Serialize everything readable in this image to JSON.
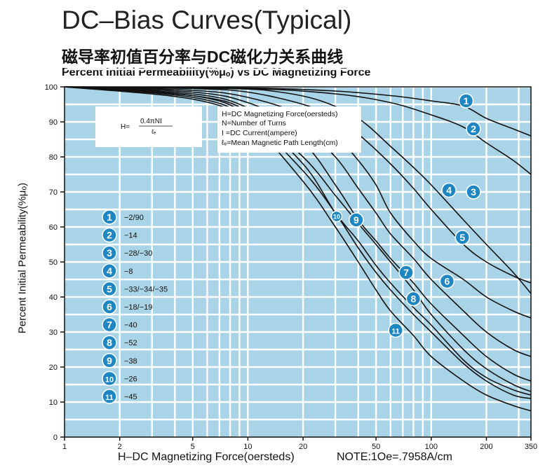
{
  "header": {
    "title": "DC–Bias Curves(Typical)",
    "subtitle_cn": "磁导率初值百分率与DC磁化力关系曲线",
    "subtitle_en": "Percent Initial Permeability(%μₒ) vs DC Magnetizing Force"
  },
  "formula": {
    "lhs": "H=",
    "numerator": "0.4πNI",
    "denominator": "ℓₑ"
  },
  "definitions": [
    "H=DC Magnetizing Force(oersteds)",
    "N=Number of Turns",
    "I =DC Current(ampere)",
    "ℓₑ=Mean Magnetic Path Length(cm)"
  ],
  "chart_data": {
    "type": "line",
    "xscale": "log",
    "xlabel": "H–DC Magnetizing Force(oersteds)",
    "xnote": "NOTE:1Oe=.7958A/cm",
    "ylabel": "Percent Initial Permeability(%μₒ)",
    "xlim": [
      1,
      350
    ],
    "ylim": [
      0,
      100
    ],
    "xticks": [
      1,
      2,
      5,
      10,
      20,
      50,
      100,
      200,
      350
    ],
    "yticks": [
      0,
      10,
      20,
      30,
      40,
      50,
      60,
      70,
      80,
      90,
      100
    ],
    "grid": true,
    "background": "#a9d3e6",
    "legend_position": "left",
    "series": [
      {
        "label": "1",
        "desc": "−2/90",
        "label_at": [
          155,
          96
        ],
        "points": [
          [
            1,
            100
          ],
          [
            10,
            99.7
          ],
          [
            30,
            98.8
          ],
          [
            60,
            97.5
          ],
          [
            100,
            96
          ],
          [
            150,
            94.5
          ],
          [
            200,
            91
          ],
          [
            280,
            88
          ],
          [
            350,
            86
          ]
        ]
      },
      {
        "label": "2",
        "desc": "−14",
        "label_at": [
          170,
          88
        ],
        "points": [
          [
            1,
            100
          ],
          [
            10,
            99.5
          ],
          [
            30,
            98
          ],
          [
            60,
            95.5
          ],
          [
            100,
            92
          ],
          [
            150,
            88.5
          ],
          [
            200,
            84
          ],
          [
            280,
            79
          ],
          [
            350,
            75
          ]
        ]
      },
      {
        "label": "3",
        "desc": "−28/−30",
        "label_at": [
          170,
          70
        ],
        "points": [
          [
            1,
            100
          ],
          [
            8,
            99.5
          ],
          [
            15,
            98.5
          ],
          [
            25,
            96
          ],
          [
            40,
            91
          ],
          [
            60,
            83
          ],
          [
            80,
            77
          ],
          [
            100,
            72
          ],
          [
            150,
            62
          ],
          [
            200,
            55
          ],
          [
            280,
            47
          ],
          [
            350,
            41
          ]
        ]
      },
      {
        "label": "4",
        "desc": "−8",
        "label_at": [
          125,
          70.5
        ],
        "points": [
          [
            1,
            100
          ],
          [
            5,
            99.5
          ],
          [
            10,
            98.5
          ],
          [
            20,
            95
          ],
          [
            30,
            91
          ],
          [
            40,
            86.5
          ],
          [
            60,
            78
          ],
          [
            80,
            71
          ],
          [
            100,
            65
          ],
          [
            150,
            55
          ],
          [
            200,
            50
          ],
          [
            280,
            46
          ],
          [
            350,
            44
          ]
        ]
      },
      {
        "label": "5",
        "desc": "−33/−34/−35",
        "label_at": [
          148,
          57
        ],
        "points": [
          [
            1,
            100
          ],
          [
            5,
            99
          ],
          [
            10,
            97
          ],
          [
            20,
            92
          ],
          [
            30,
            86
          ],
          [
            40,
            79
          ],
          [
            50,
            72
          ],
          [
            60,
            64
          ],
          [
            80,
            56
          ],
          [
            100,
            51
          ],
          [
            150,
            45
          ],
          [
            200,
            40
          ],
          [
            280,
            36
          ],
          [
            350,
            34
          ]
        ]
      },
      {
        "label": "6",
        "desc": "−18/−19",
        "label_at": [
          122,
          44.5
        ],
        "points": [
          [
            1,
            100
          ],
          [
            5,
            98.5
          ],
          [
            10,
            95.5
          ],
          [
            20,
            88
          ],
          [
            30,
            80
          ],
          [
            40,
            71
          ],
          [
            50,
            64
          ],
          [
            60,
            58
          ],
          [
            80,
            51
          ],
          [
            100,
            45
          ],
          [
            150,
            36
          ],
          [
            200,
            30
          ],
          [
            280,
            25
          ],
          [
            350,
            23
          ]
        ]
      },
      {
        "label": "7",
        "desc": "−40",
        "label_at": [
          73,
          47
        ],
        "points": [
          [
            1,
            100
          ],
          [
            5,
            98
          ],
          [
            10,
            94
          ],
          [
            20,
            84
          ],
          [
            30,
            72
          ],
          [
            40,
            62
          ],
          [
            50,
            56
          ],
          [
            60,
            51
          ],
          [
            80,
            44
          ],
          [
            100,
            38
          ],
          [
            150,
            29
          ],
          [
            200,
            23
          ],
          [
            280,
            18
          ],
          [
            350,
            16
          ]
        ]
      },
      {
        "label": "8",
        "desc": "−52",
        "label_at": [
          80,
          39.5
        ],
        "points": [
          [
            1,
            100
          ],
          [
            5,
            97.5
          ],
          [
            10,
            92
          ],
          [
            20,
            78
          ],
          [
            30,
            64
          ],
          [
            40,
            56
          ],
          [
            50,
            49
          ],
          [
            60,
            44
          ],
          [
            80,
            37
          ],
          [
            100,
            32
          ],
          [
            150,
            22
          ],
          [
            200,
            17
          ],
          [
            280,
            13.5
          ],
          [
            350,
            12
          ]
        ]
      },
      {
        "label": "9",
        "desc": "−38",
        "label_at": [
          39,
          62
        ],
        "points": [
          [
            1,
            100
          ],
          [
            5,
            97.5
          ],
          [
            10,
            93
          ],
          [
            20,
            80
          ],
          [
            30,
            69
          ],
          [
            40,
            61
          ],
          [
            50,
            55
          ],
          [
            60,
            50
          ],
          [
            80,
            42
          ],
          [
            100,
            35
          ],
          [
            150,
            25
          ],
          [
            200,
            19.5
          ],
          [
            280,
            15
          ],
          [
            350,
            13
          ]
        ]
      },
      {
        "label": "10",
        "desc": "−26",
        "label_at": [
          30.5,
          63
        ],
        "points": [
          [
            1,
            100
          ],
          [
            5,
            97
          ],
          [
            10,
            91
          ],
          [
            20,
            76
          ],
          [
            30,
            64
          ],
          [
            40,
            54
          ],
          [
            50,
            47
          ],
          [
            60,
            42
          ],
          [
            80,
            35
          ],
          [
            100,
            30
          ],
          [
            150,
            21
          ],
          [
            200,
            16
          ],
          [
            280,
            12
          ],
          [
            350,
            11
          ]
        ]
      },
      {
        "label": "11",
        "desc": "−45",
        "label_at": [
          64,
          30.5
        ],
        "points": [
          [
            1,
            100
          ],
          [
            5,
            96.5
          ],
          [
            10,
            90
          ],
          [
            20,
            73
          ],
          [
            30,
            60
          ],
          [
            40,
            50
          ],
          [
            50,
            42
          ],
          [
            60,
            36
          ],
          [
            80,
            29
          ],
          [
            100,
            23
          ],
          [
            150,
            16
          ],
          [
            200,
            12
          ],
          [
            280,
            9
          ],
          [
            350,
            7.5
          ]
        ]
      }
    ]
  }
}
